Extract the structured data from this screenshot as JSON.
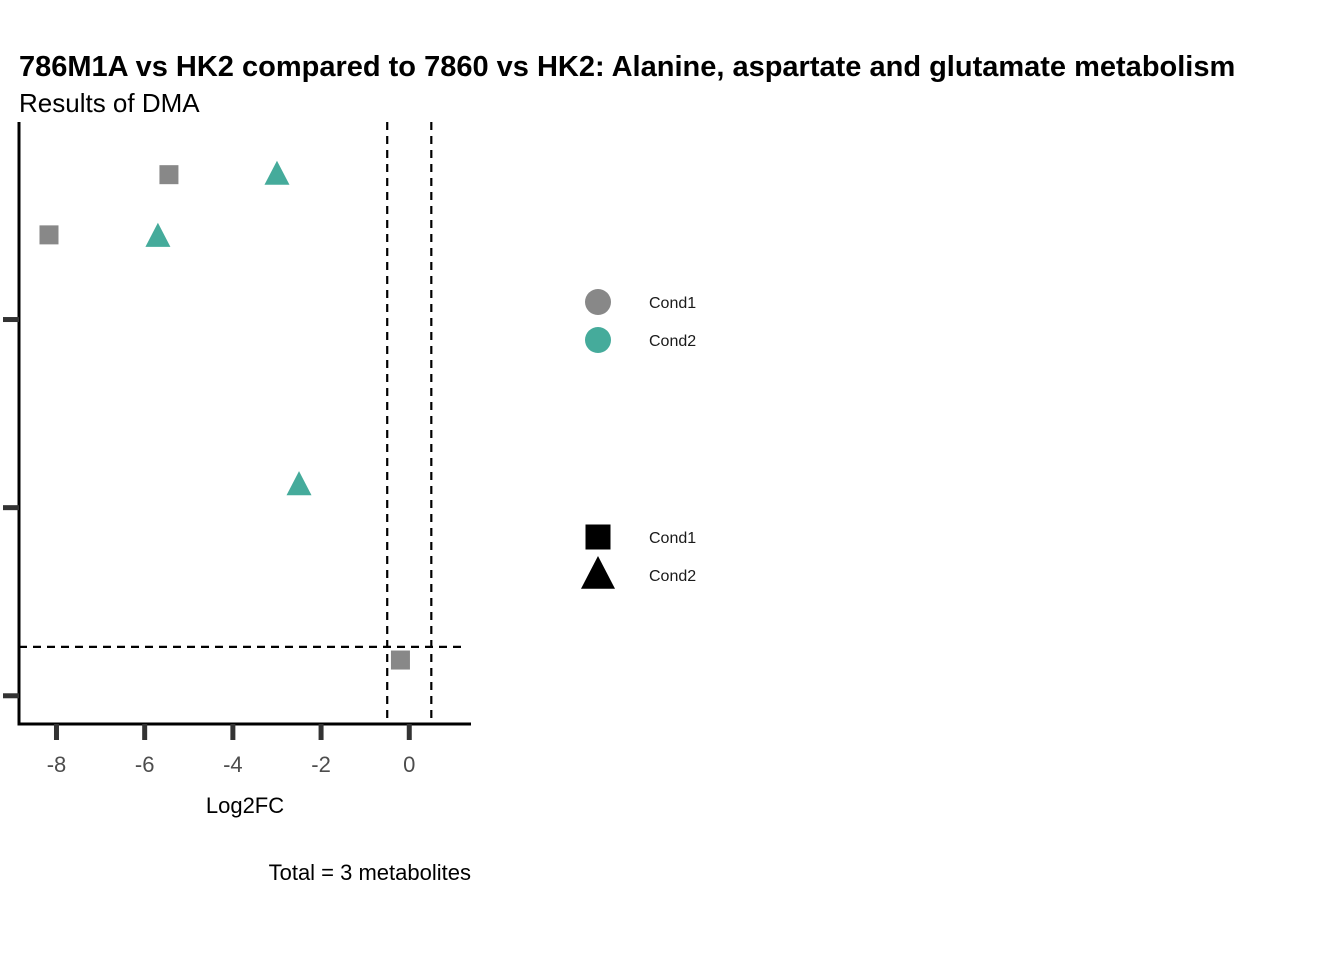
{
  "chart_data": {
    "type": "scatter",
    "title": "786M1A vs HK2 compared to 7860 vs HK2: Alanine, aspartate and glutamate metabolism",
    "subtitle": "Results of DMA",
    "xlabel": "Log2FC",
    "ylabel": "",
    "caption": "Total = 3 metabolites",
    "xlim": [
      -8.85,
      1.4
    ],
    "ylim": [
      -0.15,
      3.05
    ],
    "x_ticks": [
      -8,
      -6,
      -4,
      -2,
      0
    ],
    "x_tick_labels": [
      "-8",
      "-6",
      "-4",
      "-2",
      "0"
    ],
    "y_ticks": [
      0,
      1,
      2
    ],
    "reference_lines": {
      "vertical_x": [
        -0.5,
        0.5
      ],
      "horizontal_y": [
        0.26
      ]
    },
    "colors": {
      "Cond1": "#888888",
      "Cond2": "#45ab9b"
    },
    "series": [
      {
        "color_group": "Cond1",
        "shape_group": "Cond1",
        "shape": "square",
        "points": [
          {
            "x": -5.45,
            "y": 2.77
          },
          {
            "x": -8.17,
            "y": 2.45
          },
          {
            "x": -0.2,
            "y": 0.19
          }
        ]
      },
      {
        "color_group": "Cond2",
        "shape_group": "Cond2",
        "shape": "triangle",
        "points": [
          {
            "x": -3.0,
            "y": 2.77
          },
          {
            "x": -5.7,
            "y": 2.44
          },
          {
            "x": -2.5,
            "y": 1.12
          }
        ]
      }
    ],
    "legend_color": {
      "placement": "right",
      "items": [
        {
          "label": "Cond1",
          "color": "#888888"
        },
        {
          "label": "Cond2",
          "color": "#45ab9b"
        }
      ]
    },
    "legend_shape": {
      "placement": "right",
      "items": [
        {
          "label": "Cond1",
          "shape": "square"
        },
        {
          "label": "Cond2",
          "shape": "triangle"
        }
      ]
    }
  }
}
